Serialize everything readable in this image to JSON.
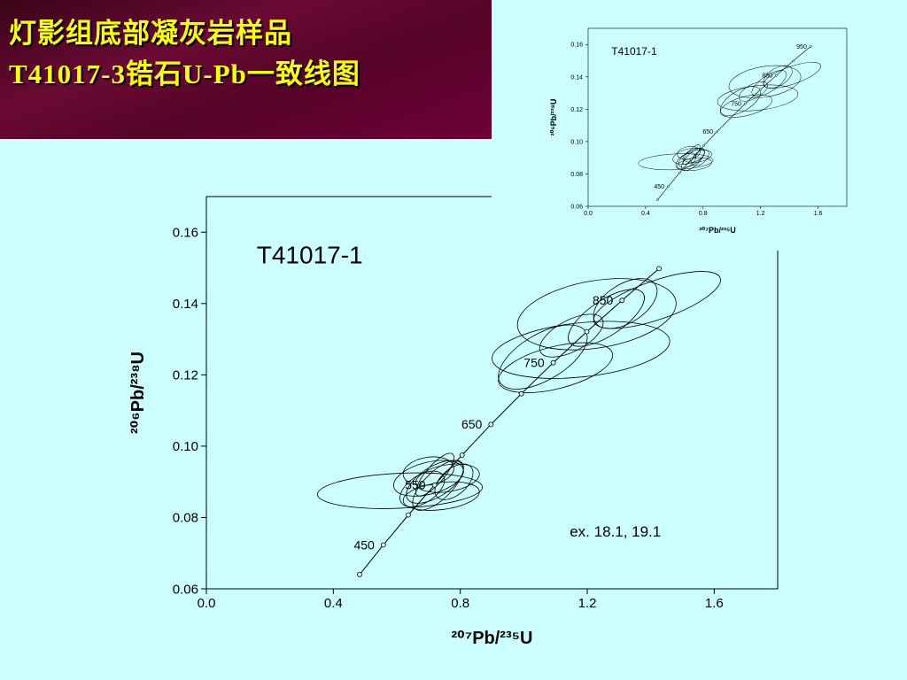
{
  "slide": {
    "title": [
      "灯影组底部凝灰岩样品",
      "T41017-3锆石U-Pb一致线图"
    ]
  },
  "chart_data": [
    {
      "type": "concordia",
      "title": "T41017-1",
      "annotation": "ex. 18.1, 19.1",
      "xlabel": "²⁰⁷Pb/²³⁵U",
      "ylabel": "²⁰⁶Pb/²³⁸U",
      "xlim": [
        0,
        1.8
      ],
      "ylim": [
        0.06,
        0.17
      ],
      "xticks": [
        {
          "value": 0,
          "label": "0.0"
        },
        0.4,
        0.8,
        1.2,
        1.6
      ],
      "yticks": [
        0.06,
        0.08,
        {
          "value": 0.1,
          "label": "0.10"
        },
        0.12,
        0.14,
        0.16
      ],
      "concordia": {
        "x": [
          0.4828,
          0.5577,
          0.6363,
          0.7189,
          0.8056,
          0.8967,
          0.9925,
          1.093,
          1.1987,
          1.3097,
          1.4263
        ],
        "y": [
          0.064,
          0.0723,
          0.0807,
          0.0891,
          0.0975,
          0.1061,
          0.1147,
          0.1234,
          0.1321,
          0.1409,
          0.1498
        ],
        "labels": [
          null,
          450,
          null,
          550,
          null,
          650,
          null,
          750,
          null,
          850,
          null
        ]
      },
      "ellipses": {
        "x": [
          1.42,
          1.23,
          1.18,
          1.06,
          1.1,
          1.26,
          1.32,
          1.15,
          0.61,
          0.72,
          0.7,
          0.73,
          0.76,
          0.68,
          0.74,
          0.72,
          0.78,
          0.7
        ],
        "y": [
          0.141,
          0.137,
          0.127,
          0.125,
          0.122,
          0.136,
          0.14,
          0.131,
          0.0875,
          0.09,
          0.091,
          0.089,
          0.091,
          0.088,
          0.086,
          0.092,
          0.09,
          0.093
        ],
        "x_err": [
          0.2,
          0.25,
          0.28,
          0.14,
          0.18,
          0.12,
          0.1,
          0.1,
          0.26,
          0.09,
          0.11,
          0.08,
          0.1,
          0.07,
          0.12,
          0.06,
          0.06,
          0.08
        ],
        "y_err": [
          0.008,
          0.01,
          0.008,
          0.009,
          0.007,
          0.008,
          0.007,
          0.006,
          0.005,
          0.006,
          0.005,
          0.007,
          0.004,
          0.005,
          0.004,
          0.006,
          0.005,
          0.004
        ],
        "rho": [
          0.7,
          0.3,
          0.3,
          0.6,
          0.5,
          0.7,
          0.5,
          0.6,
          0.2,
          0.6,
          0.4,
          0.7,
          0.3,
          0.5,
          0.3,
          0.8,
          0.5,
          0.2
        ]
      }
    },
    {
      "type": "concordia",
      "title": "T41017-1",
      "xlabel": "²⁰⁷Pb/²³⁵U",
      "ylabel": "²⁰⁶Pb/²³⁸U",
      "xlim": [
        0,
        1.8
      ],
      "ylim": [
        0.06,
        0.17
      ],
      "xticks": [
        {
          "value": 0,
          "label": "0.0"
        },
        0.4,
        0.8,
        1.2,
        1.6
      ],
      "yticks": [
        0.06,
        0.08,
        {
          "value": 0.1,
          "label": "0.10"
        },
        0.12,
        0.14,
        0.16
      ],
      "concordia": {
        "x": [
          0.4828,
          0.5577,
          0.6363,
          0.7189,
          0.8056,
          0.8967,
          0.9925,
          1.093,
          1.1987,
          1.3097,
          1.4263,
          1.5488
        ],
        "y": [
          0.064,
          0.0723,
          0.0807,
          0.0891,
          0.0975,
          0.1061,
          0.1147,
          0.1234,
          0.1321,
          0.1409,
          0.1498,
          0.1588
        ],
        "labels": [
          null,
          450,
          null,
          null,
          null,
          650,
          null,
          750,
          null,
          850,
          null,
          950
        ]
      },
      "ellipses": {
        "x": [
          1.42,
          1.23,
          1.18,
          1.06,
          1.1,
          1.26,
          1.32,
          1.15,
          0.61,
          0.72,
          0.7,
          0.73,
          0.76,
          0.68,
          0.74,
          0.72,
          0.78,
          0.7
        ],
        "y": [
          0.141,
          0.137,
          0.127,
          0.125,
          0.122,
          0.136,
          0.14,
          0.131,
          0.0875,
          0.09,
          0.091,
          0.089,
          0.091,
          0.088,
          0.086,
          0.092,
          0.09,
          0.093
        ],
        "x_err": [
          0.2,
          0.25,
          0.28,
          0.14,
          0.18,
          0.12,
          0.1,
          0.1,
          0.26,
          0.09,
          0.11,
          0.08,
          0.1,
          0.07,
          0.12,
          0.06,
          0.06,
          0.08
        ],
        "y_err": [
          0.008,
          0.01,
          0.008,
          0.009,
          0.007,
          0.008,
          0.007,
          0.006,
          0.005,
          0.006,
          0.005,
          0.007,
          0.004,
          0.005,
          0.004,
          0.006,
          0.005,
          0.004
        ],
        "rho": [
          0.7,
          0.3,
          0.3,
          0.6,
          0.5,
          0.7,
          0.5,
          0.6,
          0.2,
          0.6,
          0.4,
          0.7,
          0.3,
          0.5,
          0.3,
          0.8,
          0.5,
          0.2
        ]
      }
    }
  ]
}
